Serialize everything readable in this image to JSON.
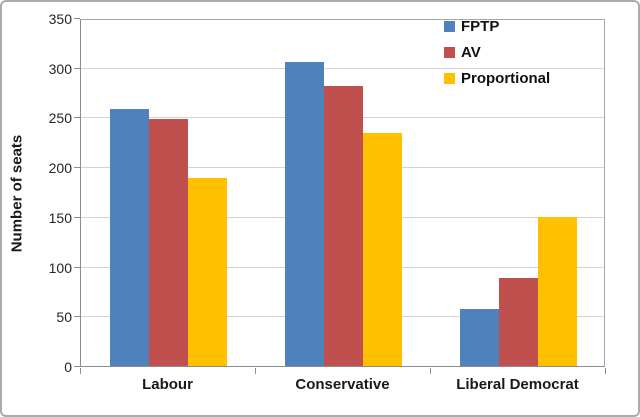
{
  "chart_data": {
    "type": "bar",
    "title": "",
    "xlabel": "",
    "ylabel": "Number of seats",
    "categories": [
      "Labour",
      "Conservative",
      "Liberal Democrat"
    ],
    "series": [
      {
        "name": "FPTP",
        "color": "#4F81BD",
        "values": [
          258,
          306,
          57
        ]
      },
      {
        "name": "AV",
        "color": "#C0504D",
        "values": [
          248,
          282,
          89
        ]
      },
      {
        "name": "Proportional",
        "color": "#FFC000",
        "values": [
          189,
          234,
          150
        ]
      }
    ],
    "ylim": [
      0,
      350
    ],
    "yticks": [
      0,
      50,
      100,
      150,
      200,
      250,
      300,
      350
    ],
    "grid": "horizontal",
    "legend_position": "top-right",
    "plot_background": "#FFFFFF",
    "gridline_color": "#D3D3D3",
    "axis_color": "#8C8C8C"
  }
}
